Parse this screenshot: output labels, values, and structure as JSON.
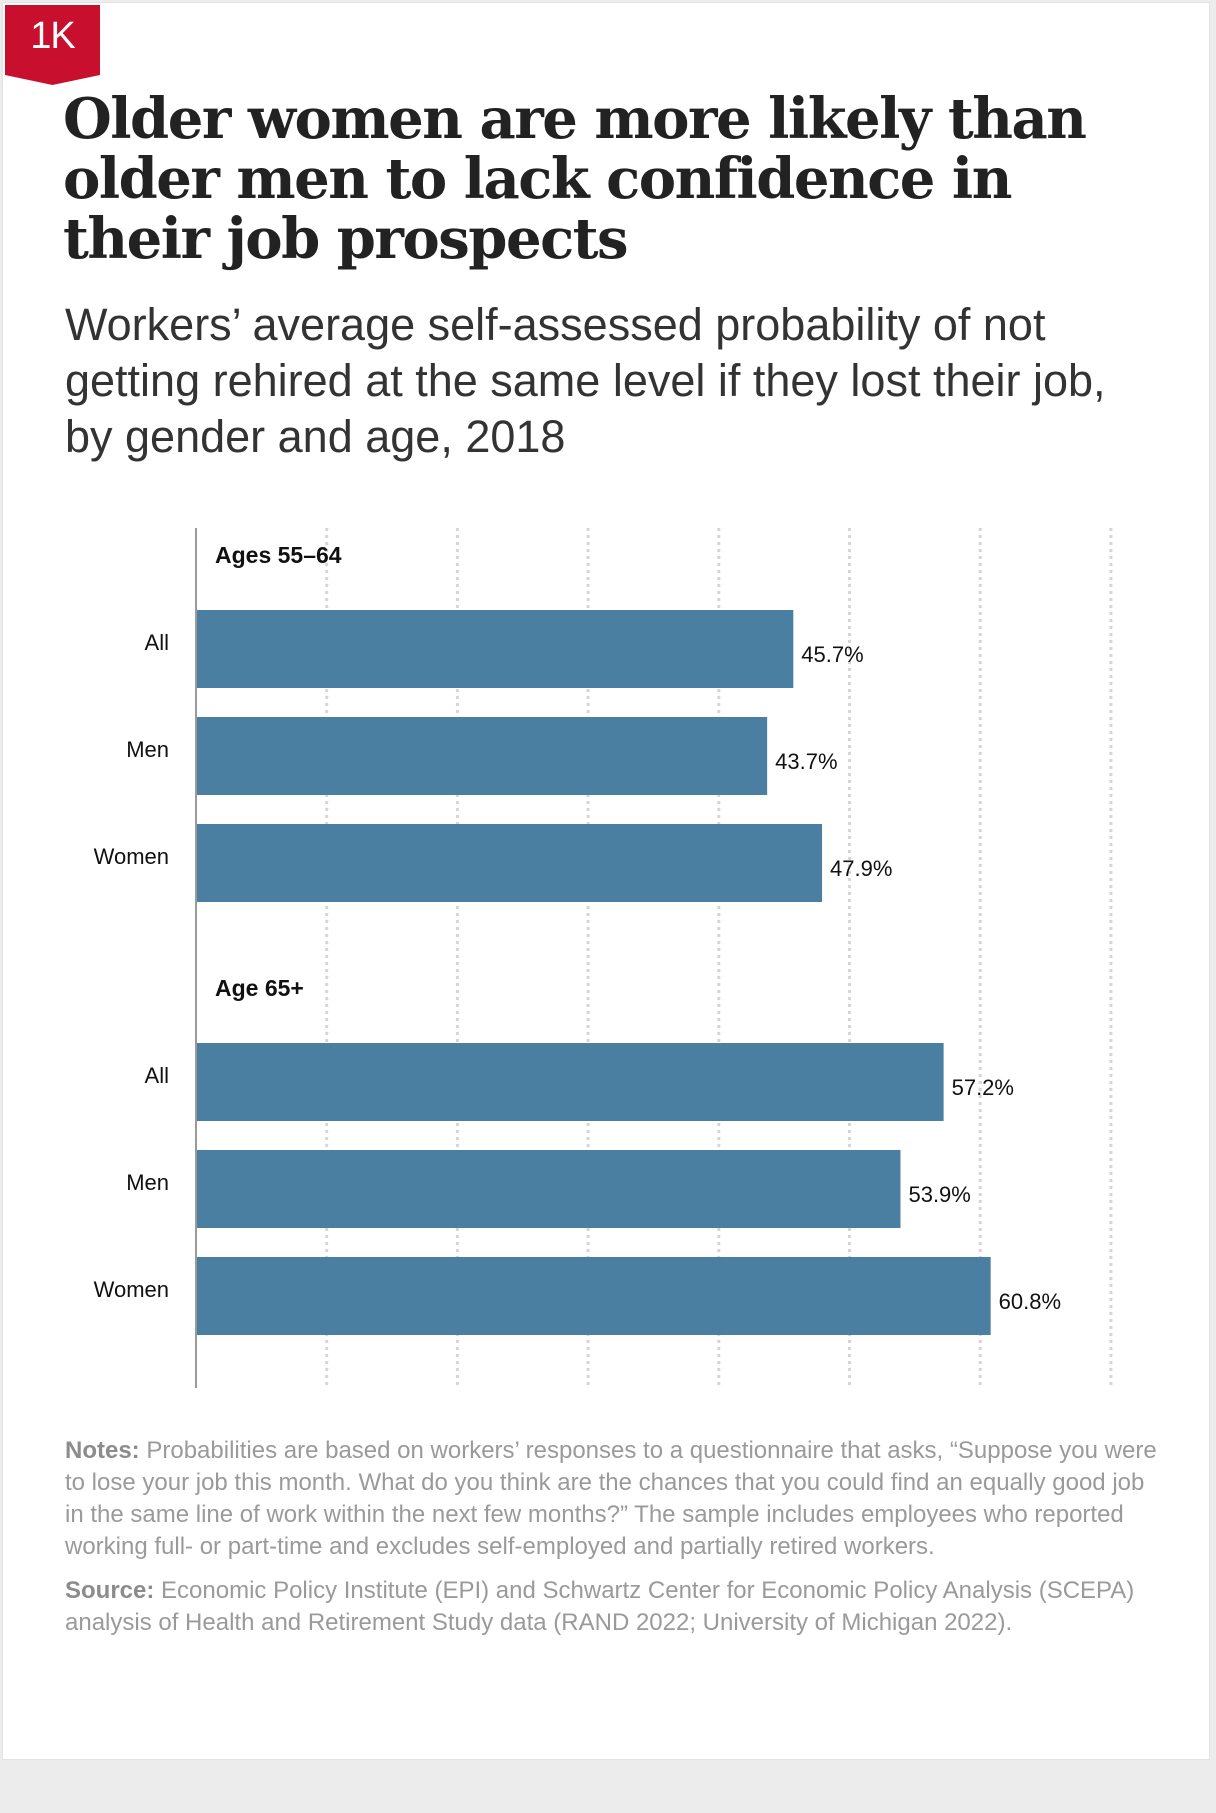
{
  "badge": {
    "label": "1K",
    "color": "#c8102e"
  },
  "title": "Older women are more likely than older men to lack confidence in their job prospects",
  "subtitle": "Workers’ average self-assessed probability of not getting rehired at the same level if they lost their job, by gender and age, 2018",
  "chart_data": {
    "type": "bar",
    "orientation": "horizontal",
    "bar_color": "#4a7fa2",
    "xlim": [
      0,
      70
    ],
    "grid": true,
    "value_suffix": "%",
    "groups": [
      {
        "label": "Ages 55–64",
        "categories": [
          "All",
          "Men",
          "Women"
        ],
        "values": [
          45.7,
          43.7,
          47.9
        ],
        "value_labels": [
          "45.7%",
          "43.7%",
          "47.9%"
        ]
      },
      {
        "label": "Age 65+",
        "categories": [
          "All",
          "Men",
          "Women"
        ],
        "values": [
          57.2,
          53.9,
          60.8
        ],
        "value_labels": [
          "57.2%",
          "53.9%",
          "60.8%"
        ]
      }
    ]
  },
  "notes": {
    "label": "Notes:",
    "text": " Probabilities are based on workers’ responses to a questionnaire that asks, “Suppose you were to lose your job this month. What do you think are the chances that you could find an equally good job in the same line of work within the next few months?” The sample includes employees who reported working full- or part-time and excludes self-employed and partially retired workers."
  },
  "source": {
    "label": "Source:",
    "text": " Economic Policy Institute (EPI) and Schwartz Center for Economic Policy Analysis (SCEPA) analysis of Health and Retirement Study data (RAND 2022; University of Michigan 2022)."
  }
}
